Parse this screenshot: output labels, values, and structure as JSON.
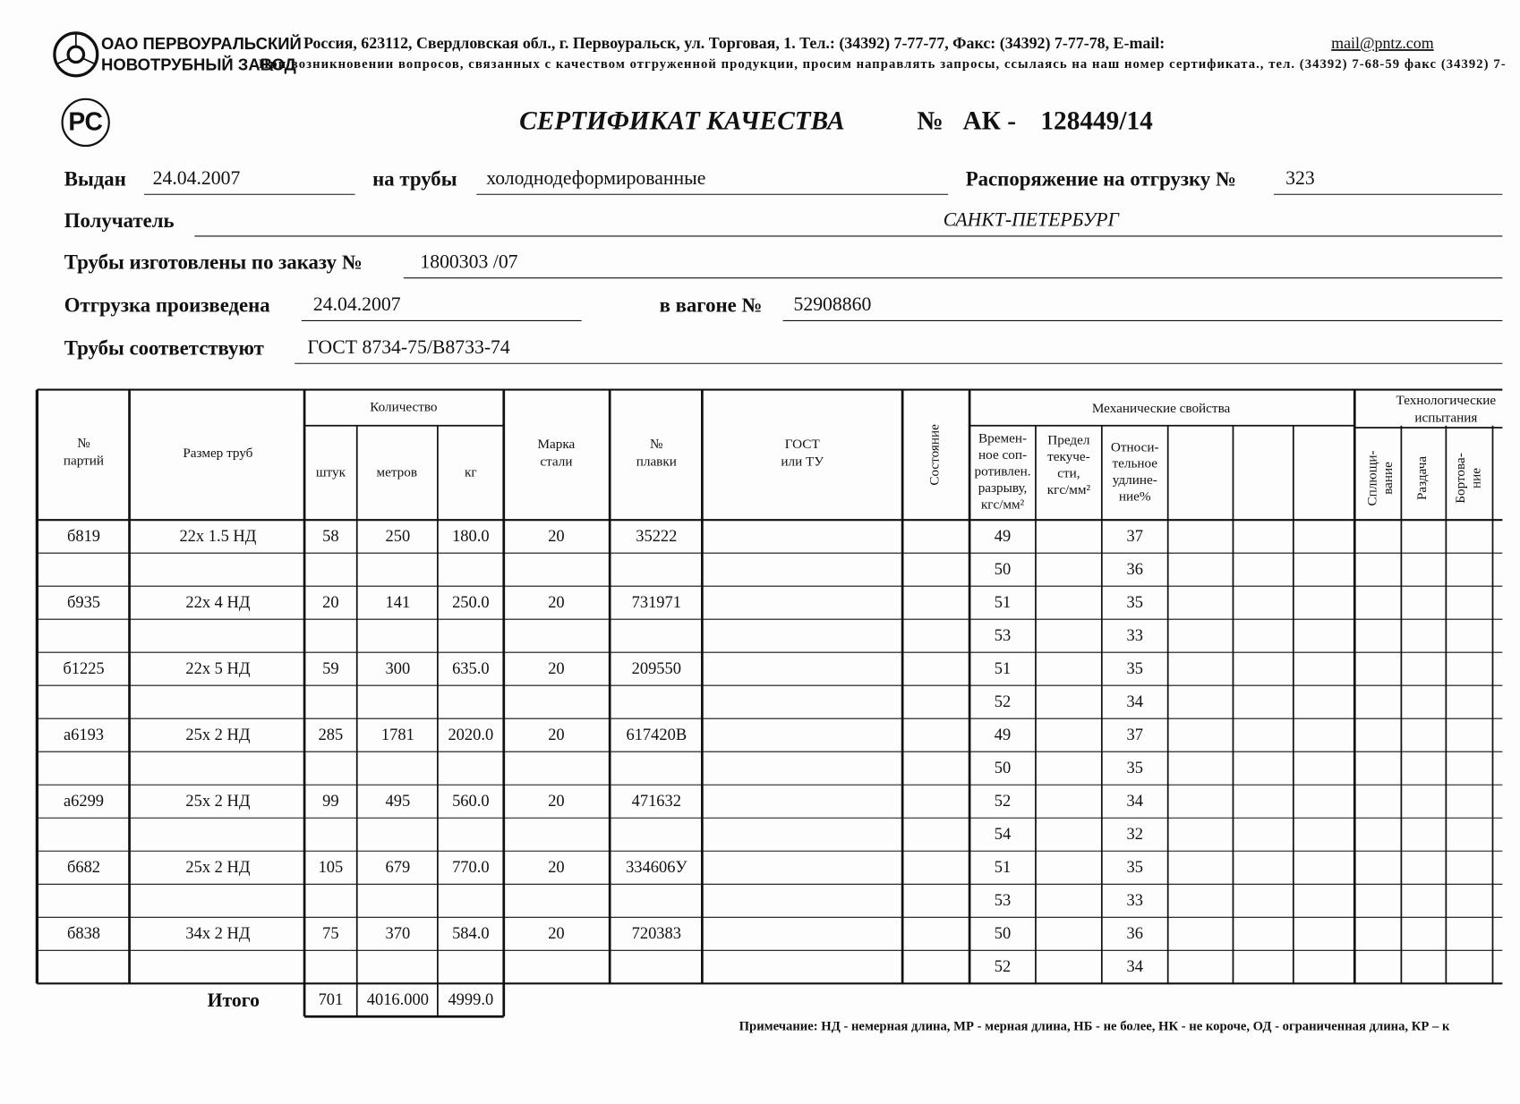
{
  "header": {
    "company": [
      "ОАО ПЕРВОУРАЛЬСКИЙ",
      "НОВОТРУБНЫЙ ЗАВОД"
    ],
    "address": "Россия, 623112, Свердловская обл., г. Первоуральск, ул. Торговая, 1. Тел.: (34392) 7-77-77, Факс: (34392) 7-77-78,  E-mail:",
    "email": "mail@pntz.com",
    "notice": "При возникновении вопросов, связанных с качеством отгруженной продукции, просим направлять запросы, ссылаясь на наш номер сертификата., тел. (34392) 7-68-59 факс (34392) 7-"
  },
  "title": {
    "text": "СЕРТИФИКАТ КАЧЕСТВА",
    "number_sign": "№",
    "prefix": "АК -",
    "number": "128449/14"
  },
  "fields": [
    {
      "label": "Выдан",
      "value": "24.04.2007"
    },
    {
      "label": "на трубы",
      "value": "холоднодеформированные"
    },
    {
      "label": "Распоряжение на отгрузку №",
      "value": "323"
    },
    {
      "label": "Получатель",
      "value": "САНКТ-ПЕТЕРБУРГ"
    },
    {
      "label": "Трубы изготовлены по заказу №",
      "value": "1800303   /07"
    },
    {
      "label": "Отгрузка произведена",
      "value": "24.04.2007"
    },
    {
      "label": "в вагоне №",
      "value": "52908860"
    },
    {
      "label": "Трубы соответствуют",
      "value": "ГОСТ 8734-75/В8733-74"
    }
  ],
  "table": {
    "headers": {
      "batch": [
        "№",
        "партий"
      ],
      "size": [
        "Размер труб"
      ],
      "quantity": [
        "Количество"
      ],
      "pieces": [
        "штук"
      ],
      "meters": [
        "метров"
      ],
      "kg": [
        "кг"
      ],
      "steel": [
        "Марка",
        "стали"
      ],
      "heat": [
        "№",
        "плавки"
      ],
      "standard": [
        "ГОСТ",
        "или ТУ"
      ],
      "condition": [
        "Состояние"
      ],
      "mechanical": [
        "Механические свойства"
      ],
      "strength": [
        "Времен-",
        "ное соп-",
        "ротивлен.",
        "разрыву,",
        "кгс/мм²"
      ],
      "yield": [
        "Предел",
        "текуче-",
        "сти,",
        "кгс/мм²"
      ],
      "elongation": [
        "Относи-",
        "тельное",
        "удлине-",
        "ние%"
      ],
      "technological": [
        "Технологические",
        "испытания"
      ],
      "flattening": [
        "Сплющи-",
        "вание"
      ],
      "expansion": [
        "Раздача"
      ],
      "flanging": [
        "Бортова-",
        "ние"
      ]
    },
    "rows": [
      {
        "batch": "б819",
        "size": "22х 1.5 НД",
        "pieces": "58",
        "meters": "250",
        "kg": "180.0",
        "steel": "20",
        "heat": "35222",
        "tests": [
          [
            "49",
            "37"
          ],
          [
            "50",
            "36"
          ]
        ]
      },
      {
        "batch": "б935",
        "size": "22х 4 НД",
        "pieces": "20",
        "meters": "141",
        "kg": "250.0",
        "steel": "20",
        "heat": "731971",
        "tests": [
          [
            "51",
            "35"
          ],
          [
            "53",
            "33"
          ]
        ]
      },
      {
        "batch": "б1225",
        "size": "22х 5 НД",
        "pieces": "59",
        "meters": "300",
        "kg": "635.0",
        "steel": "20",
        "heat": "209550",
        "tests": [
          [
            "51",
            "35"
          ],
          [
            "52",
            "34"
          ]
        ]
      },
      {
        "batch": "а6193",
        "size": "25х 2 НД",
        "pieces": "285",
        "meters": "1781",
        "kg": "2020.0",
        "steel": "20",
        "heat": "617420В",
        "tests": [
          [
            "49",
            "37"
          ],
          [
            "50",
            "35"
          ]
        ]
      },
      {
        "batch": "а6299",
        "size": "25х 2 НД",
        "pieces": "99",
        "meters": "495",
        "kg": "560.0",
        "steel": "20",
        "heat": "471632",
        "tests": [
          [
            "52",
            "34"
          ],
          [
            "54",
            "32"
          ]
        ]
      },
      {
        "batch": "б682",
        "size": "25х 2 НД",
        "pieces": "105",
        "meters": "679",
        "kg": "770.0",
        "steel": "20",
        "heat": "334606У",
        "tests": [
          [
            "51",
            "35"
          ],
          [
            "53",
            "33"
          ]
        ]
      },
      {
        "batch": "б838",
        "size": "34х 2 НД",
        "pieces": "75",
        "meters": "370",
        "kg": "584.0",
        "steel": "20",
        "heat": "720383",
        "tests": [
          [
            "50",
            "36"
          ],
          [
            "52",
            "34"
          ]
        ]
      }
    ],
    "total": {
      "label": "Итого",
      "pieces": "701",
      "meters": "4016.000",
      "kg": "4999.0"
    }
  },
  "note": "Примечание: НД - немерная длина, МР - мерная длина, НБ - не более, НК - не короче, ОД - ограниченная длина, КР – к"
}
